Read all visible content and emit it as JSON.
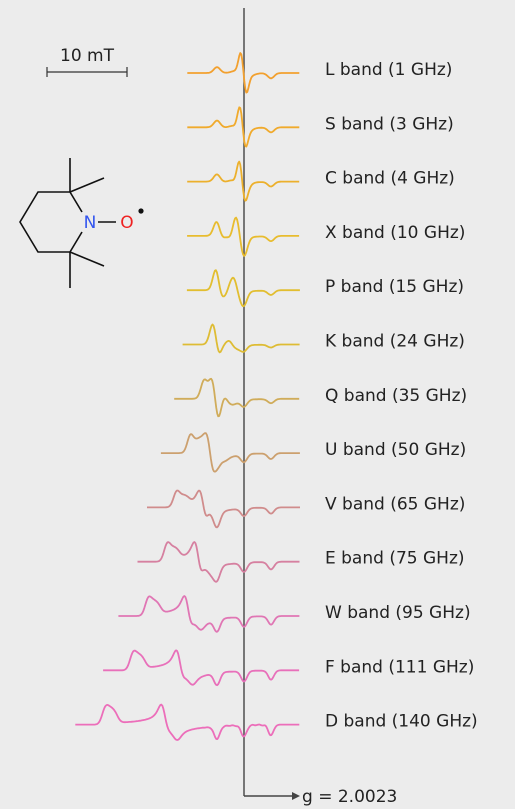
{
  "scale_bar": {
    "label": "10 mT"
  },
  "molecule": {
    "atoms": [
      "N",
      "O"
    ]
  },
  "spectra": [
    {
      "label": "L band (1 GHz)"
    },
    {
      "label": "S band (3 GHz)"
    },
    {
      "label": "C band (4 GHz)"
    },
    {
      "label": "X band (10 GHz)"
    },
    {
      "label": "P band (15 GHz)"
    },
    {
      "label": "K band (24 GHz)"
    },
    {
      "label": "Q band (35 GHz)"
    },
    {
      "label": "U band (50 GHz)"
    },
    {
      "label": "V band (65 GHz)"
    },
    {
      "label": "E band (75 GHz)"
    },
    {
      "label": "W band (95 GHz)"
    },
    {
      "label": "F band (111 GHz)"
    },
    {
      "label": "D band (140 GHz)"
    }
  ],
  "reference": {
    "label": "g = 2.0023"
  }
}
